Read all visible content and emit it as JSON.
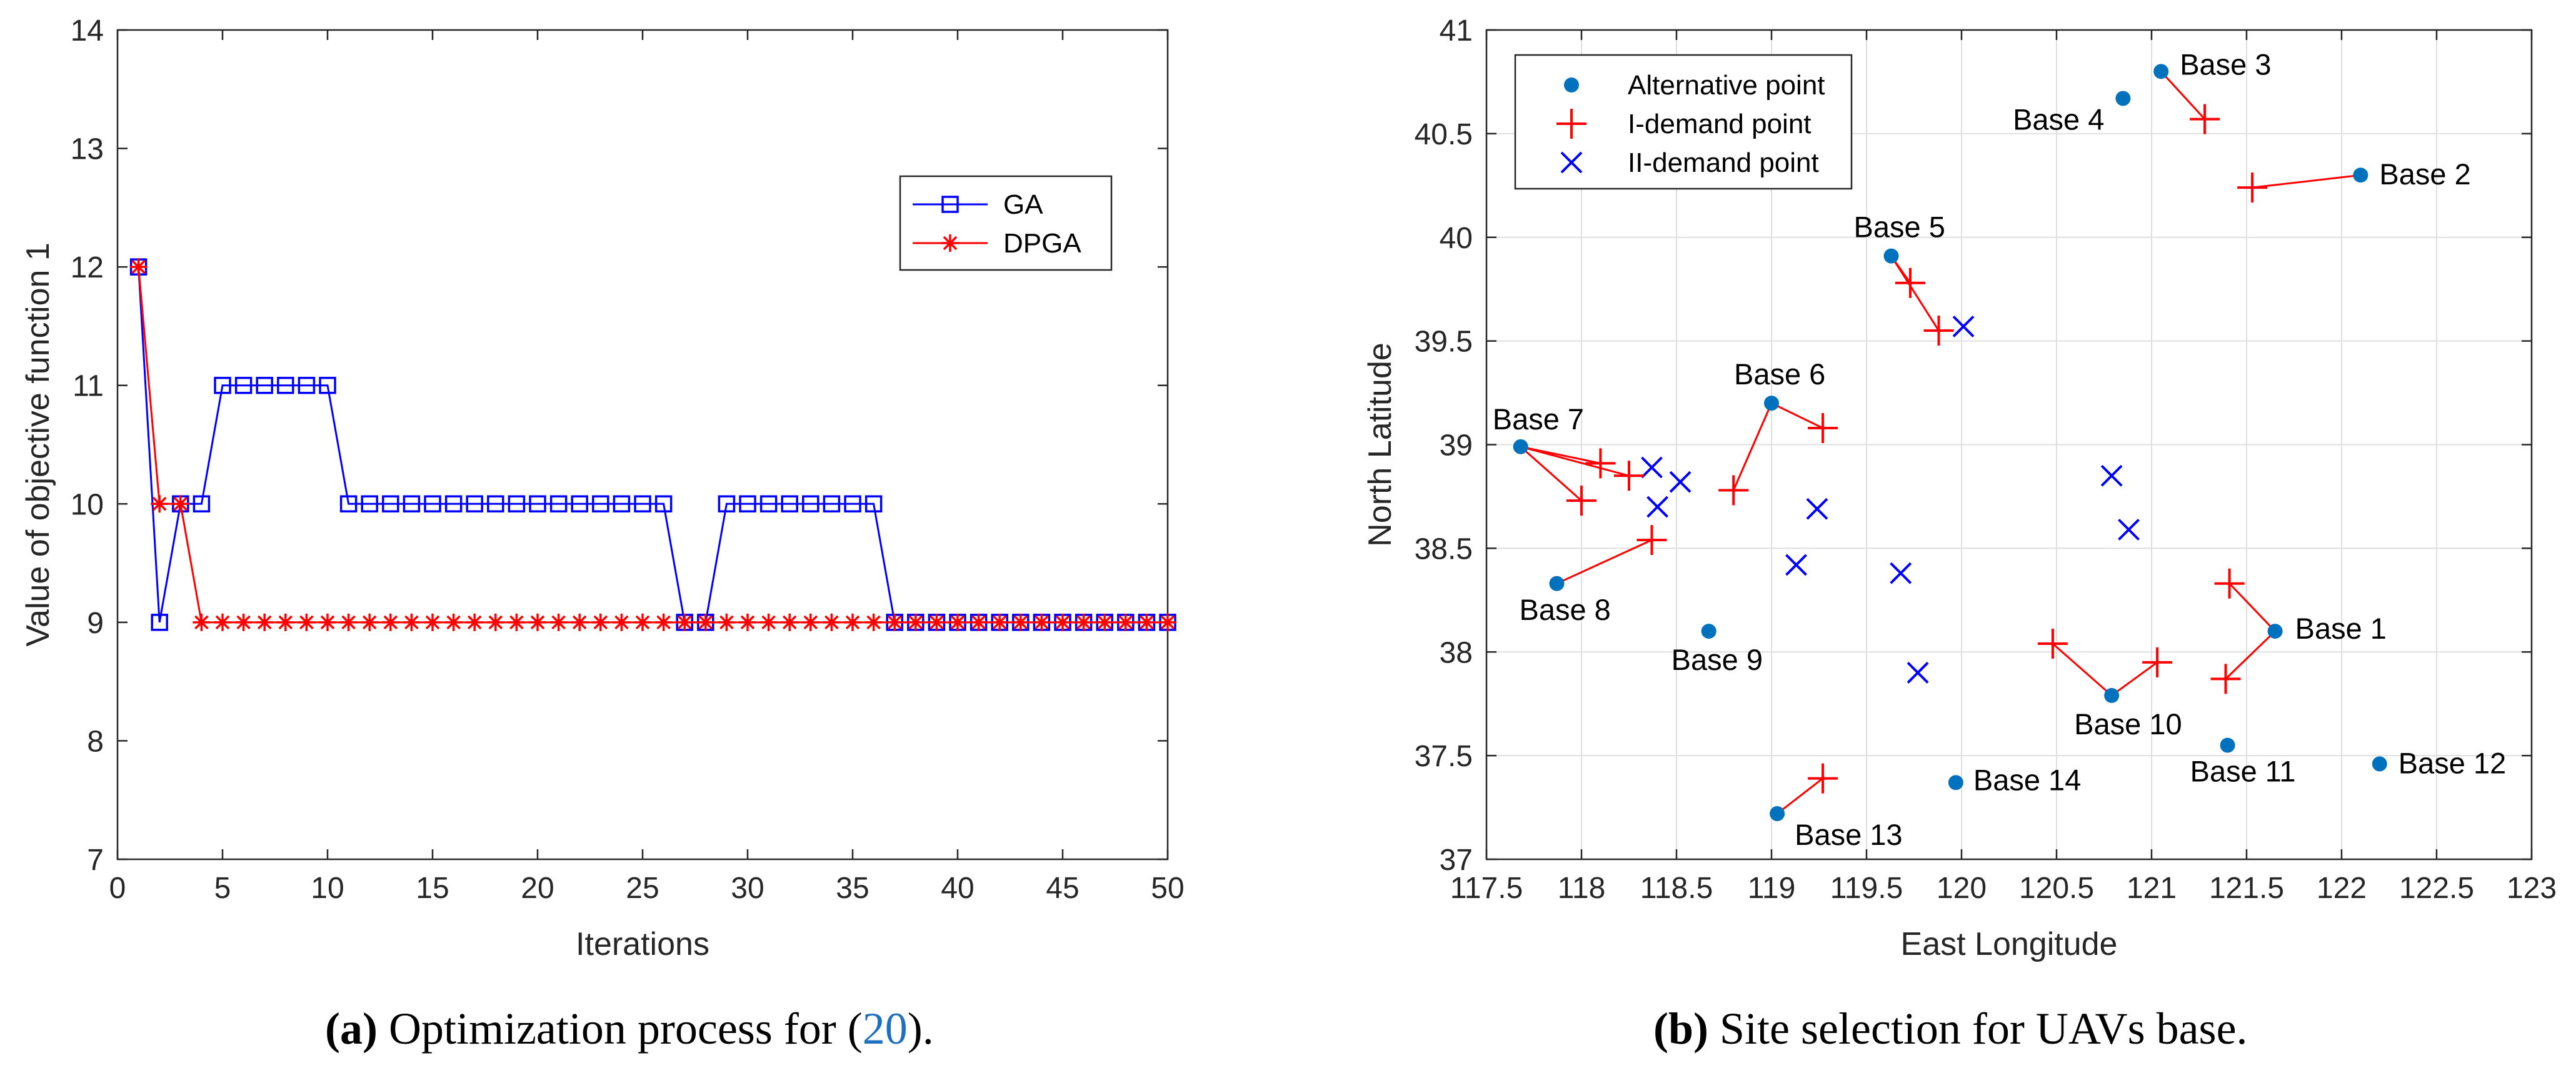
{
  "chart_data": [
    {
      "type": "line",
      "xlabel": "Iterations",
      "ylabel": "Value of objective function 1",
      "xlim": [
        0,
        50
      ],
      "ylim": [
        7,
        14
      ],
      "xticks": [
        0,
        5,
        10,
        15,
        20,
        25,
        30,
        35,
        40,
        45,
        50
      ],
      "yticks": [
        7,
        8,
        9,
        10,
        11,
        12,
        13,
        14
      ],
      "grid": false,
      "legend_position": "upper-right",
      "x": [
        1,
        2,
        3,
        4,
        5,
        6,
        7,
        8,
        9,
        10,
        11,
        12,
        13,
        14,
        15,
        16,
        17,
        18,
        19,
        20,
        21,
        22,
        23,
        24,
        25,
        26,
        27,
        28,
        29,
        30,
        31,
        32,
        33,
        34,
        35,
        36,
        37,
        38,
        39,
        40,
        41,
        42,
        43,
        44,
        45,
        46,
        47,
        48,
        49,
        50
      ],
      "series": [
        {
          "name": "GA",
          "color": "#0000ff",
          "marker": "square",
          "values": [
            12,
            9,
            10,
            10,
            11,
            11,
            11,
            11,
            11,
            11,
            10,
            10,
            10,
            10,
            10,
            10,
            10,
            10,
            10,
            10,
            10,
            10,
            10,
            10,
            10,
            10,
            9,
            9,
            10,
            10,
            10,
            10,
            10,
            10,
            10,
            10,
            9,
            9,
            9,
            9,
            9,
            9,
            9,
            9,
            9,
            9,
            9,
            9,
            9,
            9
          ]
        },
        {
          "name": "DPGA",
          "color": "#ff0000",
          "marker": "asterisk",
          "values": [
            12,
            10,
            10,
            9,
            9,
            9,
            9,
            9,
            9,
            9,
            9,
            9,
            9,
            9,
            9,
            9,
            9,
            9,
            9,
            9,
            9,
            9,
            9,
            9,
            9,
            9,
            9,
            9,
            9,
            9,
            9,
            9,
            9,
            9,
            9,
            9,
            9,
            9,
            9,
            9,
            9,
            9,
            9,
            9,
            9,
            9,
            9,
            9,
            9,
            9
          ]
        }
      ]
    },
    {
      "type": "scatter",
      "xlabel": "East Longitude",
      "ylabel": "North Latitude",
      "xlim": [
        117.5,
        123
      ],
      "ylim": [
        37,
        41
      ],
      "xticks": [
        117.5,
        118,
        118.5,
        119,
        119.5,
        120,
        120.5,
        121,
        121.5,
        122,
        122.5,
        123
      ],
      "yticks": [
        37,
        37.5,
        38,
        38.5,
        39,
        39.5,
        40,
        40.5,
        41
      ],
      "xtick_labels": [
        "117.5",
        "118",
        "118.5",
        "119",
        "119.5",
        "120",
        "120.5",
        "121",
        "121.5",
        "122",
        "122.5",
        "123"
      ],
      "ytick_labels": [
        "37",
        "37.5",
        "38",
        "38.5",
        "39",
        "39.5",
        "40",
        "40.5",
        "41"
      ],
      "grid": true,
      "legend_position": "upper-left",
      "legend": [
        {
          "name": "Alternative point",
          "marker": "dot",
          "color": "#0072bd"
        },
        {
          "name": "I-demand point",
          "marker": "plus",
          "color": "#ff0000"
        },
        {
          "name": "II-demand point",
          "marker": "x",
          "color": "#0000ff"
        }
      ],
      "bases": [
        {
          "label": "Base 1",
          "x": 121.65,
          "y": 38.1
        },
        {
          "label": "Base 2",
          "x": 122.1,
          "y": 40.3
        },
        {
          "label": "Base 3",
          "x": 121.05,
          "y": 40.8
        },
        {
          "label": "Base 4",
          "x": 120.85,
          "y": 40.67
        },
        {
          "label": "Base 5",
          "x": 119.63,
          "y": 39.91
        },
        {
          "label": "Base 6",
          "x": 119.0,
          "y": 39.2
        },
        {
          "label": "Base 7",
          "x": 117.68,
          "y": 38.99
        },
        {
          "label": "Base 8",
          "x": 117.87,
          "y": 38.33
        },
        {
          "label": "Base 9",
          "x": 118.67,
          "y": 38.1
        },
        {
          "label": "Base 10",
          "x": 120.79,
          "y": 37.79
        },
        {
          "label": "Base 11",
          "x": 121.4,
          "y": 37.55
        },
        {
          "label": "Base 12",
          "x": 122.2,
          "y": 37.46
        },
        {
          "label": "Base 13",
          "x": 119.03,
          "y": 37.22
        },
        {
          "label": "Base 14",
          "x": 119.97,
          "y": 37.37
        }
      ],
      "demand_I": [
        {
          "x": 121.28,
          "y": 40.57,
          "base": "Base 3"
        },
        {
          "x": 121.53,
          "y": 40.24,
          "base": "Base 2"
        },
        {
          "x": 119.73,
          "y": 39.78,
          "base": "Base 5"
        },
        {
          "x": 119.88,
          "y": 39.55,
          "base": "Base 5"
        },
        {
          "x": 119.27,
          "y": 39.08,
          "base": "Base 6"
        },
        {
          "x": 118.8,
          "y": 38.78,
          "base": "Base 6"
        },
        {
          "x": 118.1,
          "y": 38.91,
          "base": "Base 7"
        },
        {
          "x": 118.25,
          "y": 38.85,
          "base": "Base 7"
        },
        {
          "x": 118.0,
          "y": 38.73,
          "base": "Base 7"
        },
        {
          "x": 118.37,
          "y": 38.54,
          "base": "Base 8"
        },
        {
          "x": 121.41,
          "y": 38.33,
          "base": "Base 1"
        },
        {
          "x": 121.39,
          "y": 37.87,
          "base": "Base 1"
        },
        {
          "x": 120.48,
          "y": 38.04,
          "base": "Base 10"
        },
        {
          "x": 121.03,
          "y": 37.95,
          "base": "Base 10"
        },
        {
          "x": 119.27,
          "y": 37.39,
          "base": "Base 13"
        }
      ],
      "demand_II": [
        {
          "x": 120.01,
          "y": 39.57
        },
        {
          "x": 118.37,
          "y": 38.89
        },
        {
          "x": 118.52,
          "y": 38.82
        },
        {
          "x": 118.4,
          "y": 38.7
        },
        {
          "x": 119.24,
          "y": 38.69
        },
        {
          "x": 120.79,
          "y": 38.85
        },
        {
          "x": 120.88,
          "y": 38.59
        },
        {
          "x": 119.13,
          "y": 38.42
        },
        {
          "x": 119.68,
          "y": 38.38
        },
        {
          "x": 119.77,
          "y": 37.9
        }
      ]
    }
  ],
  "captions": {
    "a_label": "(a)",
    "a_text": " Optimization process for (",
    "a_ref": "20",
    "a_end": ").",
    "b_label": "(b)",
    "b_text": " Site selection for UAVs base."
  }
}
